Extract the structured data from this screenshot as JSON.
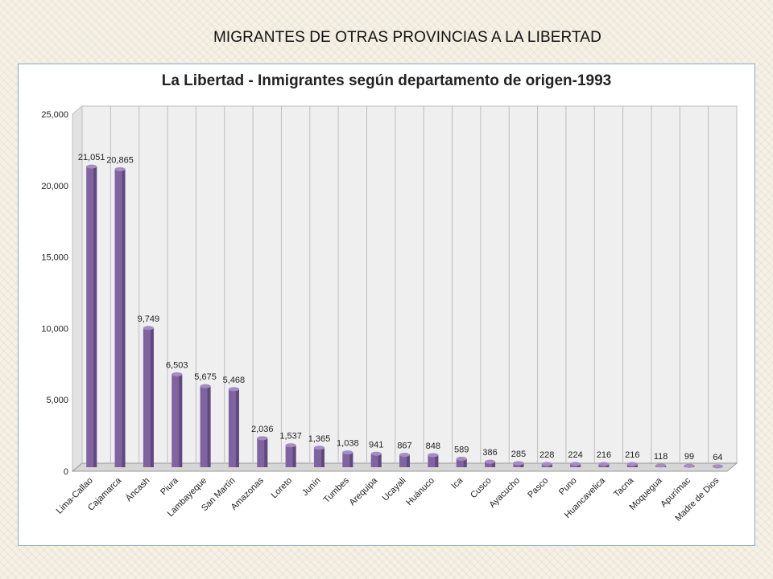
{
  "slide": {
    "title": "MIGRANTES DE OTRAS PROVINCIAS A LA LIBERTAD"
  },
  "colors": {
    "bar": "#8064a2",
    "bar_dark": "#5f4a7e",
    "bar_top": "#a48dc2",
    "frame_border": "#8aa6c8",
    "wall": "#efefef",
    "grid": "#bdbdbd"
  },
  "chart_data": {
    "type": "bar",
    "title": "La Libertad - Inmigrantes según departamento de origen-1993",
    "xlabel": "",
    "ylabel": "",
    "ylim": [
      0,
      25000
    ],
    "yticks": [
      0,
      5000,
      10000,
      15000,
      20000,
      25000
    ],
    "ytick_labels": [
      "0",
      "5,000",
      "10,000",
      "15,000",
      "20,000",
      "25,000"
    ],
    "grid": "vertical category separators",
    "legend": "none",
    "categories": [
      "Lima-Callao",
      "Cajamarca",
      "Áncash",
      "Piura",
      "Lambayeque",
      "San Martín",
      "Amazonas",
      "Loreto",
      "Junín",
      "Tumbes",
      "Arequipa",
      "Ucayali",
      "Huánuco",
      "Ica",
      "Cusco",
      "Ayacucho",
      "Pasco",
      "Puno",
      "Huancavelica",
      "Tacna",
      "Moquegua",
      "Apurímac",
      "Madre de Dios"
    ],
    "values": [
      21051,
      20865,
      9749,
      6503,
      5675,
      5468,
      2036,
      1537,
      1365,
      1038,
      941,
      867,
      848,
      589,
      386,
      285,
      228,
      224,
      216,
      216,
      118,
      99,
      64
    ],
    "value_labels": [
      "21,051",
      "20,865",
      "9,749",
      "6,503",
      "5,675",
      "5,468",
      "2,036",
      "1,537",
      "1,365",
      "1,038",
      "941",
      "867",
      "848",
      "589",
      "386",
      "285",
      "228",
      "224",
      "216",
      "216",
      "118",
      "99",
      "64"
    ]
  }
}
